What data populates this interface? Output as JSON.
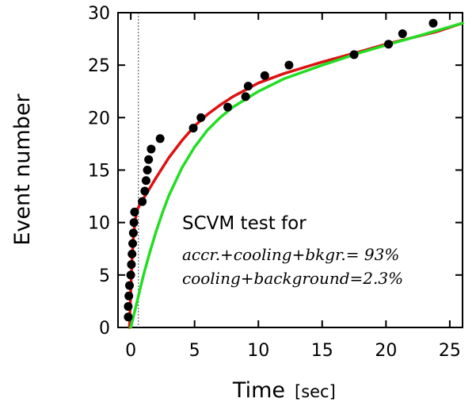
{
  "chart_data": {
    "type": "scatter",
    "xlabel": "Time",
    "xunit": "[sec]",
    "ylabel": "Event number",
    "xlim": [
      -1,
      26
    ],
    "ylim": [
      0,
      30
    ],
    "xticks": [
      0,
      5,
      10,
      15,
      20,
      25
    ],
    "yticks": [
      0,
      5,
      10,
      15,
      20,
      25,
      30
    ],
    "grid": false,
    "reference_line": {
      "x": 0.6,
      "style": "dotted"
    },
    "annotation": {
      "title": "SCVM test for",
      "line1": "accr.+cooling+bkgr.= 93%",
      "line2": "cooling+background=2.3%"
    },
    "series": [
      {
        "type": "scatter",
        "color": "#000000",
        "points": [
          [
            -0.2,
            1
          ],
          [
            -0.2,
            2
          ],
          [
            -0.15,
            3
          ],
          [
            -0.1,
            4
          ],
          [
            0.0,
            5
          ],
          [
            0.05,
            6
          ],
          [
            0.1,
            7
          ],
          [
            0.15,
            8
          ],
          [
            0.2,
            9
          ],
          [
            0.25,
            10
          ],
          [
            0.3,
            11
          ],
          [
            0.9,
            12
          ],
          [
            1.1,
            13
          ],
          [
            1.2,
            14
          ],
          [
            1.3,
            15
          ],
          [
            1.4,
            16
          ],
          [
            1.6,
            17
          ],
          [
            2.3,
            18
          ],
          [
            4.9,
            19
          ],
          [
            5.5,
            20
          ],
          [
            7.6,
            21
          ],
          [
            9.0,
            22
          ],
          [
            9.2,
            23
          ],
          [
            10.5,
            24
          ],
          [
            12.4,
            25
          ],
          [
            17.5,
            26
          ],
          [
            20.2,
            27
          ],
          [
            21.3,
            28
          ],
          [
            23.7,
            29
          ]
        ]
      },
      {
        "type": "line",
        "color": "#dd1111",
        "points": [
          [
            -0.1,
            0
          ],
          [
            0.0,
            3.5
          ],
          [
            0.1,
            6.5
          ],
          [
            0.2,
            8.5
          ],
          [
            0.35,
            10.3
          ],
          [
            0.5,
            11.2
          ],
          [
            0.7,
            11.7
          ],
          [
            1.0,
            12.3
          ],
          [
            1.5,
            13.3
          ],
          [
            2.0,
            14.3
          ],
          [
            3.0,
            16.2
          ],
          [
            4.0,
            17.8
          ],
          [
            5.0,
            19.2
          ],
          [
            6.0,
            20.3
          ],
          [
            7.0,
            21.2
          ],
          [
            8.0,
            22.0
          ],
          [
            10.0,
            23.3
          ],
          [
            12.0,
            24.2
          ],
          [
            15.0,
            25.3
          ],
          [
            18.0,
            26.3
          ],
          [
            20.0,
            27.0
          ],
          [
            22.0,
            27.6
          ],
          [
            24.0,
            28.2
          ],
          [
            26.0,
            29.0
          ]
        ]
      },
      {
        "type": "line",
        "color": "#22dd22",
        "points": [
          [
            0.0,
            0
          ],
          [
            0.5,
            2.5
          ],
          [
            1.0,
            5.0
          ],
          [
            1.5,
            7.2
          ],
          [
            2.0,
            9.2
          ],
          [
            2.5,
            11.0
          ],
          [
            3.0,
            12.6
          ],
          [
            4.0,
            15.2
          ],
          [
            5.0,
            17.2
          ],
          [
            6.0,
            18.8
          ],
          [
            7.0,
            20.0
          ],
          [
            8.0,
            21.0
          ],
          [
            10.0,
            22.5
          ],
          [
            12.0,
            23.7
          ],
          [
            15.0,
            25.0
          ],
          [
            18.0,
            26.2
          ],
          [
            20.0,
            26.9
          ],
          [
            22.0,
            27.6
          ],
          [
            24.0,
            28.3
          ],
          [
            26.0,
            29.0
          ]
        ]
      }
    ]
  }
}
